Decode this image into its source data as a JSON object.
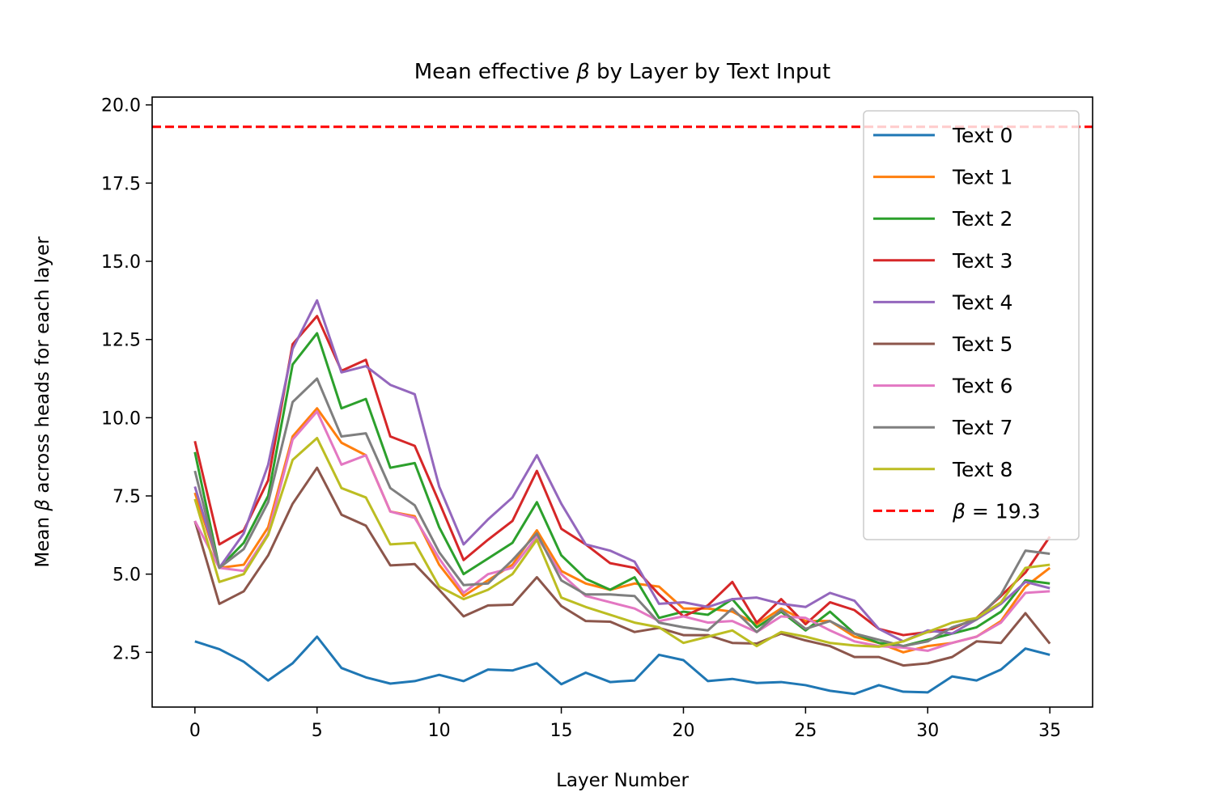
{
  "chart_data": {
    "type": "line",
    "title_prefix": "Mean effective ",
    "title_symbol": "β",
    "title_suffix": " by Layer by Text Input",
    "xlabel": "Layer Number",
    "ylabel_prefix": "Mean ",
    "ylabel_symbol": "β",
    "ylabel_suffix": " across heads for each layer",
    "xlim": [
      -1.75,
      36.75
    ],
    "ylim": [
      0.75,
      20.25
    ],
    "xticks": [
      0,
      5,
      10,
      15,
      20,
      25,
      30,
      35
    ],
    "xtick_labels": [
      "0",
      "5",
      "10",
      "15",
      "20",
      "25",
      "30",
      "35"
    ],
    "yticks": [
      2.5,
      5.0,
      7.5,
      10.0,
      12.5,
      15.0,
      17.5,
      20.0
    ],
    "ytick_labels": [
      "2.5",
      "5.0",
      "7.5",
      "10.0",
      "12.5",
      "15.0",
      "17.5",
      "20.0"
    ],
    "grid": false,
    "legend_position": "top-right",
    "x": [
      0,
      1,
      2,
      3,
      4,
      5,
      6,
      7,
      8,
      9,
      10,
      11,
      12,
      13,
      14,
      15,
      16,
      17,
      18,
      19,
      20,
      21,
      22,
      23,
      24,
      25,
      26,
      27,
      28,
      29,
      30,
      31,
      32,
      33,
      34,
      35
    ],
    "series": [
      {
        "name": "Text 0",
        "color": "#1f77b4",
        "values": [
          2.85,
          2.6,
          2.2,
          1.6,
          2.15,
          3.0,
          2.0,
          1.7,
          1.5,
          1.58,
          1.78,
          1.58,
          1.95,
          1.92,
          2.15,
          1.48,
          1.85,
          1.55,
          1.6,
          2.42,
          2.25,
          1.58,
          1.65,
          1.52,
          1.55,
          1.45,
          1.27,
          1.17,
          1.45,
          1.24,
          1.22,
          1.73,
          1.6,
          1.95,
          2.62,
          2.42
        ]
      },
      {
        "name": "Text 1",
        "color": "#ff7f0e",
        "values": [
          7.6,
          5.2,
          5.3,
          6.5,
          9.4,
          10.3,
          9.2,
          8.8,
          7.0,
          6.85,
          5.3,
          4.3,
          4.8,
          5.3,
          6.4,
          5.1,
          4.7,
          4.5,
          4.7,
          4.6,
          3.9,
          3.9,
          3.8,
          3.4,
          3.9,
          3.5,
          3.5,
          3.0,
          2.8,
          2.5,
          2.7,
          2.8,
          3.0,
          3.5,
          4.6,
          5.2
        ]
      },
      {
        "name": "Text 2",
        "color": "#2ca02c",
        "values": [
          8.9,
          5.2,
          6.0,
          7.5,
          11.7,
          12.7,
          10.3,
          10.6,
          8.4,
          8.55,
          6.5,
          5.0,
          5.5,
          6.0,
          7.3,
          5.6,
          4.85,
          4.5,
          4.9,
          3.6,
          3.8,
          3.7,
          4.2,
          3.3,
          3.8,
          3.2,
          3.8,
          3.1,
          2.8,
          2.7,
          2.9,
          3.1,
          3.3,
          3.8,
          4.8,
          4.7
        ]
      },
      {
        "name": "Text 3",
        "color": "#d62728",
        "values": [
          9.25,
          5.95,
          6.4,
          8.0,
          12.35,
          13.25,
          11.5,
          11.85,
          9.4,
          9.1,
          7.3,
          5.45,
          6.1,
          6.7,
          8.3,
          6.45,
          5.95,
          5.35,
          5.2,
          4.35,
          3.65,
          4.0,
          4.75,
          3.45,
          4.2,
          3.4,
          4.1,
          3.85,
          3.25,
          3.05,
          3.15,
          3.25,
          3.6,
          4.3,
          5.05,
          6.2
        ]
      },
      {
        "name": "Text 4",
        "color": "#9467bd",
        "values": [
          7.8,
          5.2,
          6.3,
          8.5,
          12.2,
          13.75,
          11.45,
          11.65,
          11.05,
          10.75,
          7.8,
          5.95,
          6.75,
          7.45,
          8.8,
          7.25,
          5.95,
          5.75,
          5.4,
          4.05,
          4.1,
          3.95,
          4.2,
          4.25,
          4.05,
          3.95,
          4.4,
          4.15,
          3.25,
          2.85,
          3.2,
          3.1,
          3.55,
          4.05,
          4.75,
          4.55
        ]
      },
      {
        "name": "Text 5",
        "color": "#8c564b",
        "values": [
          6.7,
          4.05,
          4.45,
          5.6,
          7.25,
          8.4,
          6.9,
          6.55,
          5.28,
          5.32,
          4.5,
          3.65,
          4.0,
          4.02,
          4.9,
          3.98,
          3.5,
          3.48,
          3.15,
          3.28,
          3.05,
          3.05,
          2.8,
          2.78,
          3.1,
          2.88,
          2.7,
          2.35,
          2.35,
          2.08,
          2.15,
          2.35,
          2.85,
          2.8,
          3.75,
          2.78
        ]
      },
      {
        "name": "Text 6",
        "color": "#e377c2",
        "values": [
          6.7,
          5.2,
          5.1,
          6.3,
          9.3,
          10.2,
          8.5,
          8.8,
          7.0,
          6.8,
          5.5,
          4.4,
          5.0,
          5.2,
          6.2,
          5.0,
          4.3,
          4.1,
          3.9,
          3.5,
          3.65,
          3.45,
          3.5,
          3.15,
          3.65,
          3.6,
          3.2,
          2.85,
          2.7,
          2.65,
          2.55,
          2.8,
          3.0,
          3.45,
          4.4,
          4.45
        ]
      },
      {
        "name": "Text 7",
        "color": "#7f7f7f",
        "values": [
          8.3,
          5.2,
          5.8,
          7.3,
          10.5,
          11.25,
          9.4,
          9.5,
          7.75,
          7.2,
          5.7,
          4.65,
          4.7,
          5.45,
          6.3,
          4.8,
          4.35,
          4.35,
          4.3,
          3.45,
          3.3,
          3.2,
          3.9,
          3.15,
          3.85,
          3.25,
          3.5,
          3.1,
          2.9,
          2.7,
          2.85,
          3.3,
          3.55,
          4.35,
          5.75,
          5.65
        ]
      },
      {
        "name": "Text 8",
        "color": "#bcbd22",
        "values": [
          7.4,
          4.75,
          5.0,
          6.25,
          8.65,
          9.35,
          7.75,
          7.45,
          5.95,
          6.0,
          4.6,
          4.2,
          4.5,
          5.0,
          6.1,
          4.25,
          3.95,
          3.7,
          3.45,
          3.3,
          2.8,
          3.0,
          3.2,
          2.7,
          3.15,
          3.0,
          2.8,
          2.72,
          2.68,
          2.85,
          3.15,
          3.45,
          3.6,
          4.1,
          5.2,
          5.3
        ]
      }
    ],
    "reference_line": {
      "label_symbol": "β",
      "label_suffix": " = 19.3",
      "y": 19.3,
      "color": "#ff0000",
      "style": "dashed"
    }
  }
}
